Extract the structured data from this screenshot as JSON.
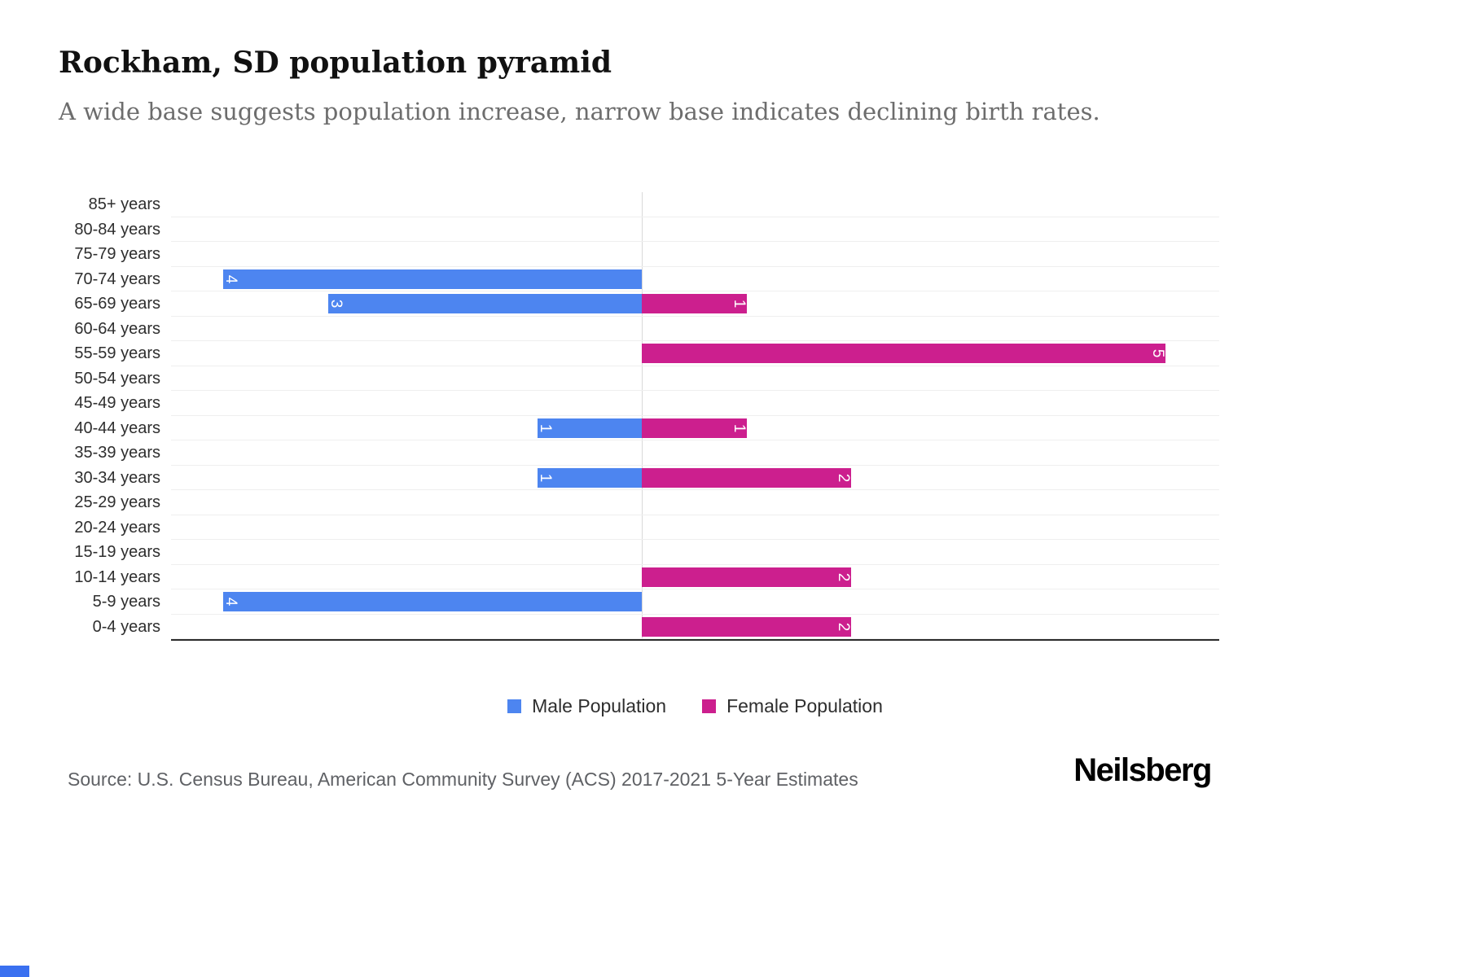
{
  "header": {
    "title": "Rockham, SD population pyramid",
    "subtitle": "A wide base suggests population increase, narrow base indicates declining birth rates."
  },
  "chart_data": {
    "type": "bar",
    "variant": "population-pyramid",
    "orientation": "horizontal",
    "categories": [
      "85+ years",
      "80-84 years",
      "75-79 years",
      "70-74 years",
      "65-69 years",
      "60-64 years",
      "55-59 years",
      "50-54 years",
      "45-49 years",
      "40-44 years",
      "35-39 years",
      "30-34 years",
      "25-29 years",
      "20-24 years",
      "15-19 years",
      "10-14 years",
      "5-9 years",
      "0-4 years"
    ],
    "series": [
      {
        "name": "Male Population",
        "color": "#4d85f0",
        "values": [
          0,
          0,
          0,
          4,
          3,
          0,
          0,
          0,
          0,
          1,
          0,
          1,
          0,
          0,
          0,
          0,
          4,
          0
        ]
      },
      {
        "name": "Female Population",
        "color": "#cc1f8e",
        "values": [
          0,
          0,
          0,
          0,
          1,
          0,
          5,
          0,
          0,
          1,
          0,
          2,
          0,
          0,
          0,
          2,
          0,
          2
        ]
      }
    ],
    "male_axis_max": 4.5,
    "female_axis_max": 5.5,
    "value_label_color": "#ffffff",
    "grid": "light-horizontal-rows-and-center-vertical",
    "legend_position": "bottom-center"
  },
  "legend": {
    "items": [
      {
        "label": "Male Population",
        "color": "#4d85f0"
      },
      {
        "label": "Female Population",
        "color": "#cc1f8e"
      }
    ]
  },
  "footer": {
    "source": "Source: U.S. Census Bureau, American Community Survey (ACS) 2017-2021 5-Year Estimates",
    "logo": "Neilsberg"
  },
  "decor": {
    "bottom_strip_color": "#3a70f0"
  }
}
